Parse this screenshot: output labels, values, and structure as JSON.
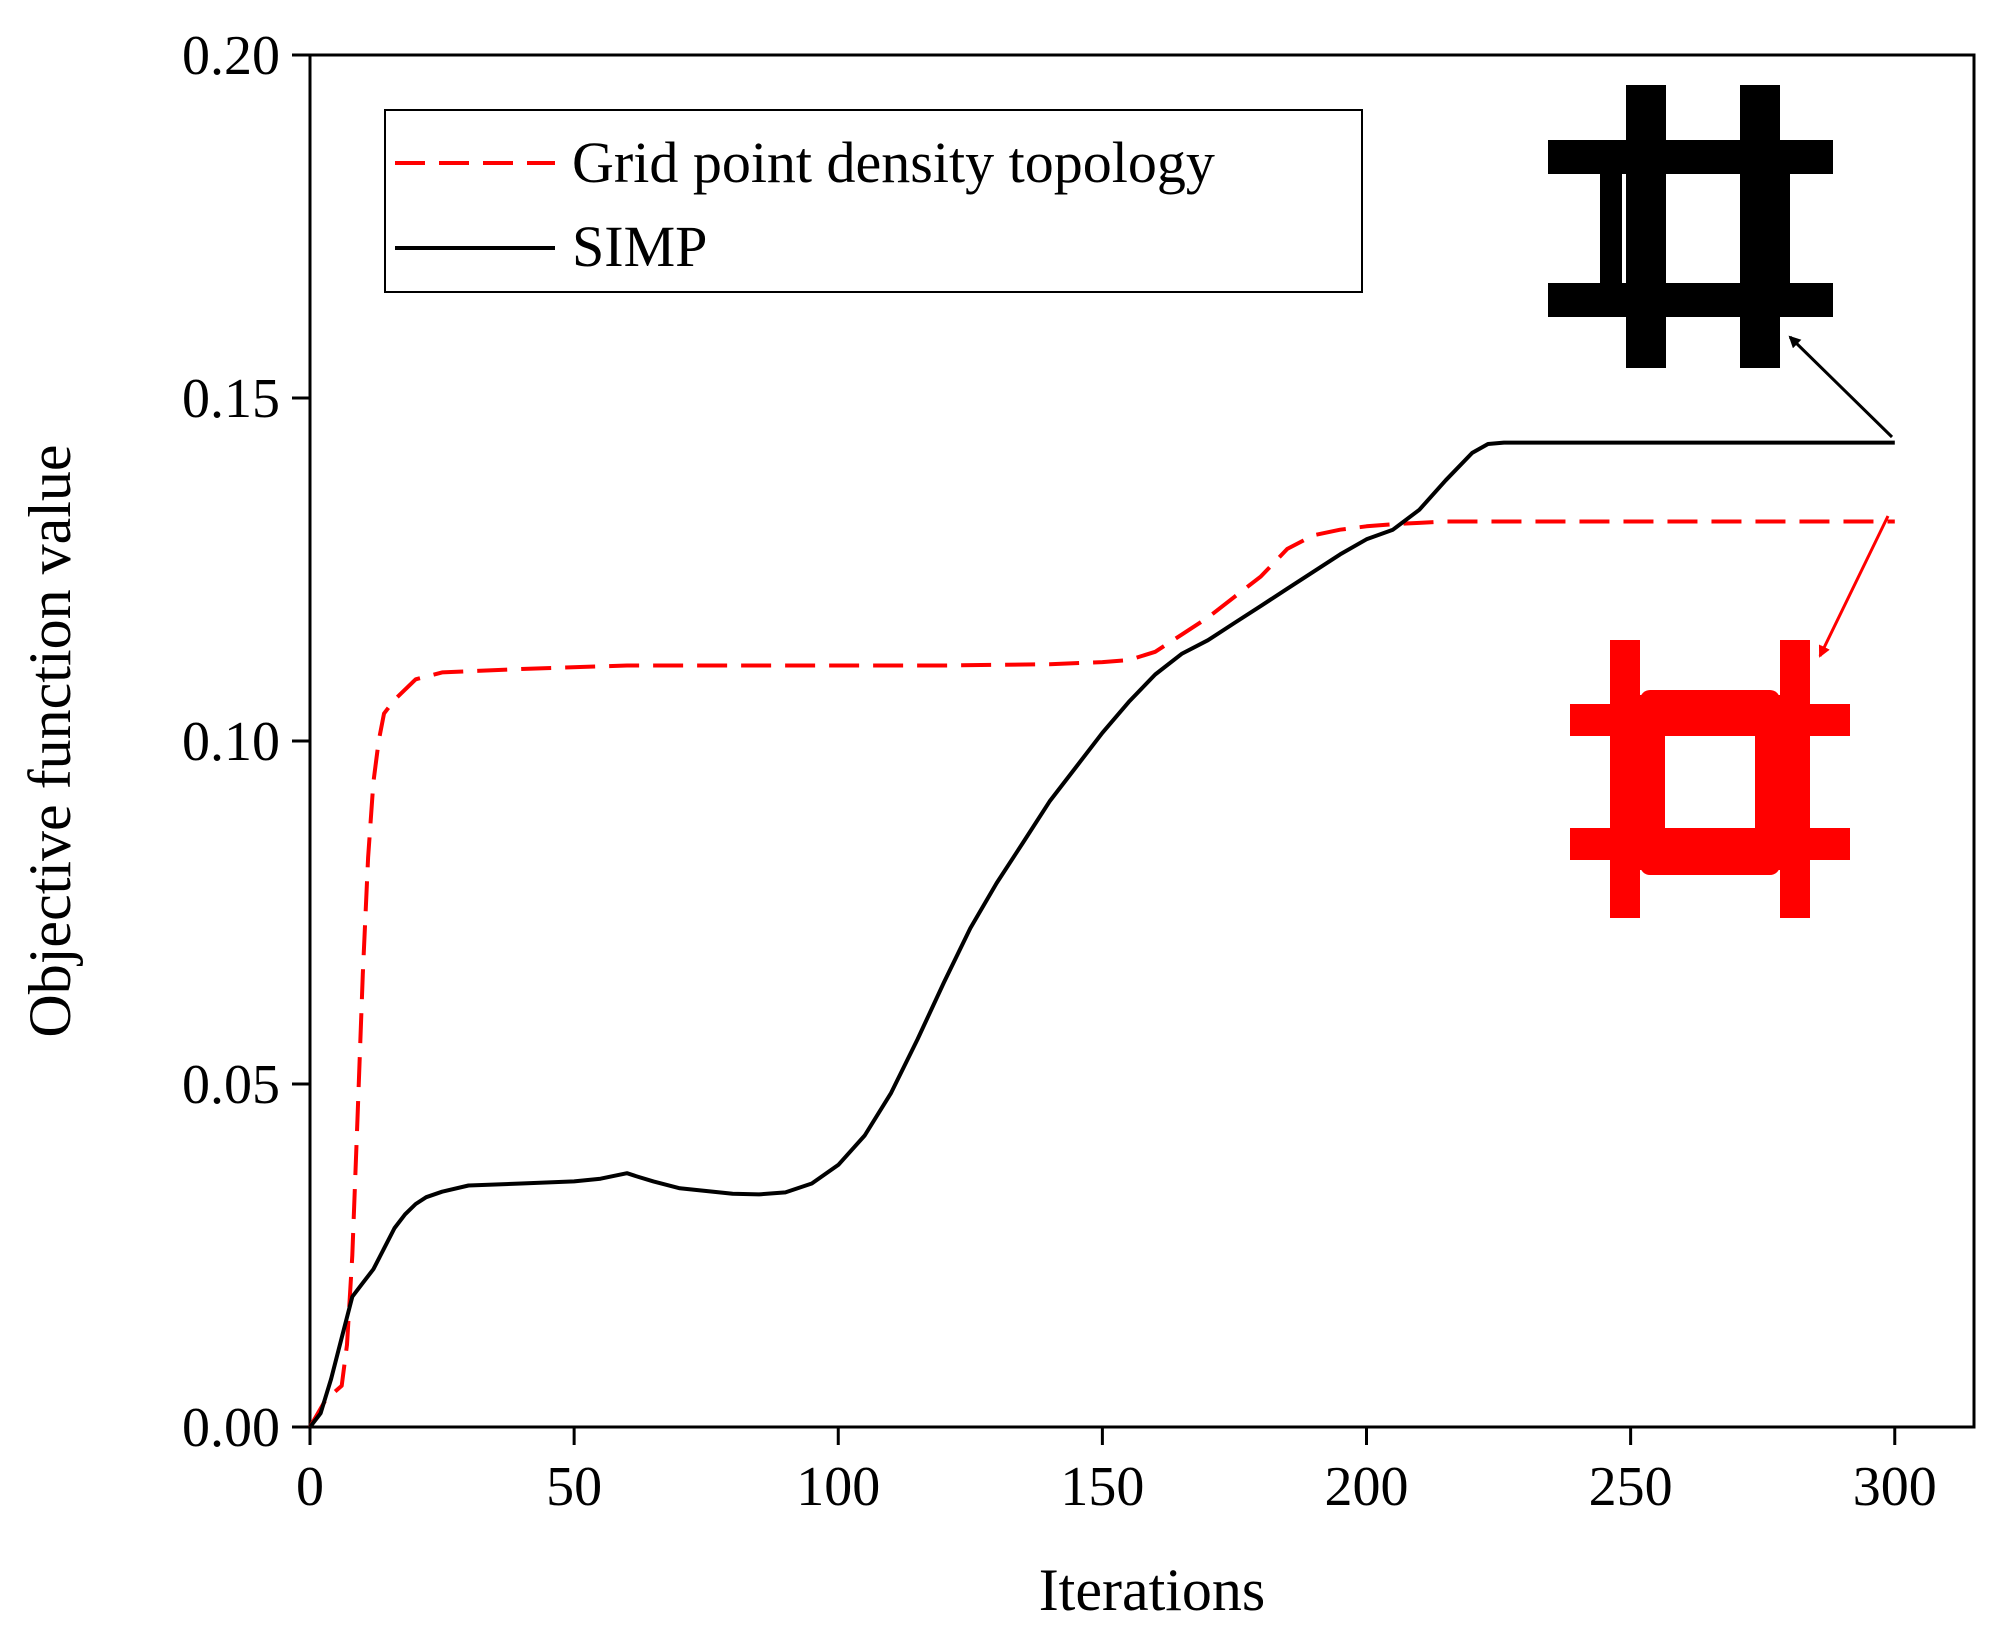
{
  "chart_data": {
    "type": "line",
    "title": "",
    "xlabel": "Iterations",
    "ylabel": "Objective function value",
    "xlim": [
      0,
      315
    ],
    "ylim": [
      0,
      0.2
    ],
    "xticks": [
      0,
      50,
      100,
      150,
      200,
      250,
      300
    ],
    "xtick_labels": [
      "0",
      "50",
      "100",
      "150",
      "200",
      "250",
      "300"
    ],
    "yticks": [
      0,
      0.05,
      0.1,
      0.15,
      0.2
    ],
    "ytick_labels": [
      "0.00",
      "0.05",
      "0.10",
      "0.15",
      "0.20"
    ],
    "grid": false,
    "legend_position": "top-left",
    "series": [
      {
        "name": "Grid point density topology",
        "color": "#ff0000",
        "style": "dashed",
        "x": [
          0,
          3,
          6,
          7,
          8,
          9,
          10,
          11,
          12,
          13,
          14,
          16,
          20,
          25,
          40,
          60,
          80,
          100,
          120,
          140,
          150,
          155,
          160,
          165,
          170,
          175,
          180,
          185,
          190,
          195,
          200,
          205,
          210,
          215,
          220,
          230,
          250,
          270,
          300
        ],
        "y": [
          0,
          0.004,
          0.006,
          0.012,
          0.025,
          0.045,
          0.066,
          0.083,
          0.094,
          0.1,
          0.104,
          0.106,
          0.109,
          0.11,
          0.1105,
          0.111,
          0.111,
          0.111,
          0.111,
          0.1112,
          0.1115,
          0.1118,
          0.113,
          0.1155,
          0.118,
          0.121,
          0.124,
          0.128,
          0.13,
          0.1308,
          0.1313,
          0.1316,
          0.1318,
          0.132,
          0.132,
          0.132,
          0.132,
          0.132,
          0.132
        ]
      },
      {
        "name": "SIMP",
        "color": "#000000",
        "style": "solid",
        "x": [
          0,
          2,
          4,
          6,
          8,
          10,
          12,
          14,
          16,
          18,
          20,
          22,
          25,
          30,
          40,
          50,
          55,
          60,
          62,
          65,
          70,
          80,
          85,
          90,
          95,
          100,
          105,
          110,
          115,
          120,
          125,
          130,
          135,
          140,
          145,
          150,
          155,
          160,
          165,
          170,
          175,
          180,
          185,
          190,
          195,
          200,
          205,
          210,
          215,
          220,
          223,
          226,
          240,
          260,
          280,
          300
        ],
        "y": [
          0,
          0.002,
          0.007,
          0.013,
          0.019,
          0.021,
          0.023,
          0.026,
          0.029,
          0.031,
          0.0325,
          0.0335,
          0.0343,
          0.0352,
          0.0355,
          0.0358,
          0.0362,
          0.037,
          0.0365,
          0.0358,
          0.0348,
          0.034,
          0.0339,
          0.0342,
          0.0355,
          0.0382,
          0.0425,
          0.0487,
          0.0565,
          0.0648,
          0.0727,
          0.0793,
          0.0852,
          0.0912,
          0.0962,
          0.1012,
          0.1057,
          0.1097,
          0.1127,
          0.1147,
          0.1172,
          0.1197,
          0.1222,
          0.1247,
          0.1272,
          0.1294,
          0.1308,
          0.1337,
          0.138,
          0.142,
          0.1433,
          0.1435,
          0.1435,
          0.1435,
          0.1435,
          0.1435
        ]
      }
    ],
    "annotations": [
      {
        "label": "SIMP topology result",
        "points_to_x": 300,
        "points_to_y": 0.1435,
        "color": "#000000"
      },
      {
        "label": "Grid point density topology result",
        "points_to_x": 300,
        "points_to_y": 0.132,
        "color": "#ff0000"
      }
    ]
  }
}
